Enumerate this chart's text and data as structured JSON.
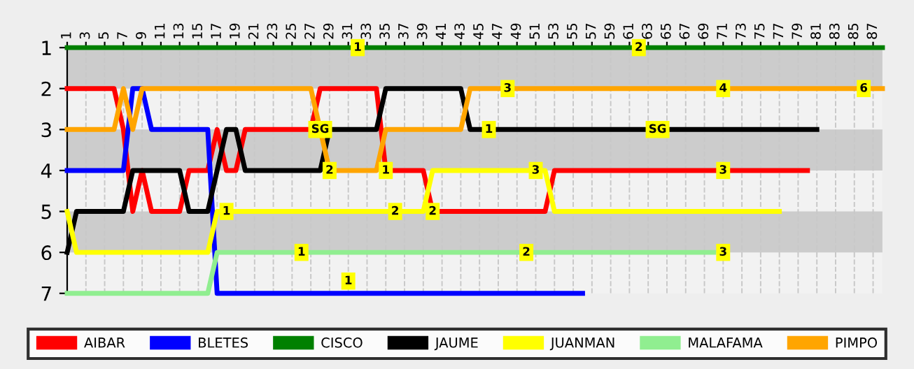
{
  "chart_data": {
    "type": "line",
    "xlim": [
      1,
      88
    ],
    "xticks": [
      1,
      3,
      5,
      7,
      9,
      11,
      13,
      15,
      17,
      19,
      21,
      23,
      25,
      27,
      29,
      31,
      33,
      35,
      37,
      39,
      41,
      43,
      45,
      47,
      49,
      51,
      53,
      55,
      57,
      59,
      61,
      63,
      65,
      67,
      69,
      71,
      73,
      75,
      77,
      79,
      81,
      83,
      85,
      87
    ],
    "ylim": [
      7,
      1
    ],
    "yticks": [
      1,
      2,
      3,
      4,
      5,
      6,
      7
    ],
    "grid": "x",
    "legend": "bottom",
    "line_style": "solid",
    "marker": "none",
    "bands": [
      {
        "axis": "y",
        "from": 1,
        "to": 2,
        "color": "#cccccc"
      },
      {
        "axis": "y",
        "from": 3,
        "to": 4,
        "color": "#cccccc"
      },
      {
        "axis": "y",
        "from": 5,
        "to": 6,
        "color": "#cccccc"
      }
    ],
    "series": [
      {
        "name": "AIBAR",
        "color": "#ff0000",
        "x": [
          1,
          6,
          7,
          8,
          9,
          10,
          13,
          14,
          16,
          17,
          18,
          19,
          20,
          27,
          28,
          34,
          35,
          39,
          40,
          52,
          53,
          80
        ],
        "values": [
          2,
          2,
          3,
          5,
          4,
          5,
          5,
          4,
          4,
          3,
          4,
          4,
          3,
          3,
          2,
          2,
          4,
          4,
          5,
          5,
          4,
          4
        ]
      },
      {
        "name": "BLETES",
        "color": "#0000ff",
        "x": [
          1,
          7,
          8,
          9,
          10,
          16,
          17,
          56
        ],
        "values": [
          4,
          4,
          2,
          2,
          3,
          3,
          7,
          7
        ]
      },
      {
        "name": "CISCO",
        "color": "#008000",
        "x": [
          1,
          88
        ],
        "values": [
          1,
          1
        ]
      },
      {
        "name": "JAUME",
        "color": "#000000",
        "x": [
          1,
          2,
          7,
          8,
          13,
          14,
          16,
          18,
          19,
          20,
          28,
          29,
          34,
          35,
          43,
          44,
          81
        ],
        "values": [
          6,
          5,
          5,
          4,
          4,
          5,
          5,
          3,
          3,
          4,
          4,
          3,
          3,
          2,
          2,
          3,
          3
        ]
      },
      {
        "name": "JUANMAN",
        "color": "#ffff00",
        "x": [
          1,
          2,
          16,
          17,
          39,
          40,
          52,
          53,
          77
        ],
        "values": [
          5,
          6,
          6,
          5,
          5,
          4,
          4,
          5,
          5
        ]
      },
      {
        "name": "MALAFAMA",
        "color": "#90ee90",
        "x": [
          1,
          16,
          17,
          70
        ],
        "values": [
          7,
          7,
          6,
          6
        ]
      },
      {
        "name": "PIMPO",
        "color": "#ffa500",
        "x": [
          1,
          6,
          7,
          8,
          9,
          27,
          29,
          34,
          35,
          43,
          44,
          88
        ],
        "values": [
          3,
          3,
          2,
          3,
          2,
          2,
          4,
          4,
          3,
          3,
          2,
          2
        ]
      }
    ],
    "annotations": [
      {
        "text": "1",
        "x": 32,
        "y": 1
      },
      {
        "text": "2",
        "x": 62,
        "y": 1
      },
      {
        "text": "3",
        "x": 48,
        "y": 2
      },
      {
        "text": "4",
        "x": 71,
        "y": 2
      },
      {
        "text": "6",
        "x": 86,
        "y": 2
      },
      {
        "text": "SG",
        "x": 28,
        "y": 3
      },
      {
        "text": "1",
        "x": 46,
        "y": 3
      },
      {
        "text": "SG",
        "x": 64,
        "y": 3
      },
      {
        "text": "2",
        "x": 29,
        "y": 4
      },
      {
        "text": "1",
        "x": 35,
        "y": 4
      },
      {
        "text": "3",
        "x": 51,
        "y": 4
      },
      {
        "text": "3",
        "x": 71,
        "y": 4
      },
      {
        "text": "1",
        "x": 18,
        "y": 5
      },
      {
        "text": "2",
        "x": 36,
        "y": 5
      },
      {
        "text": "2",
        "x": 40,
        "y": 5
      },
      {
        "text": "1",
        "x": 26,
        "y": 6
      },
      {
        "text": "2",
        "x": 50,
        "y": 6
      },
      {
        "text": "3",
        "x": 71,
        "y": 6
      },
      {
        "text": "1",
        "x": 31,
        "y": 6.7
      }
    ]
  }
}
